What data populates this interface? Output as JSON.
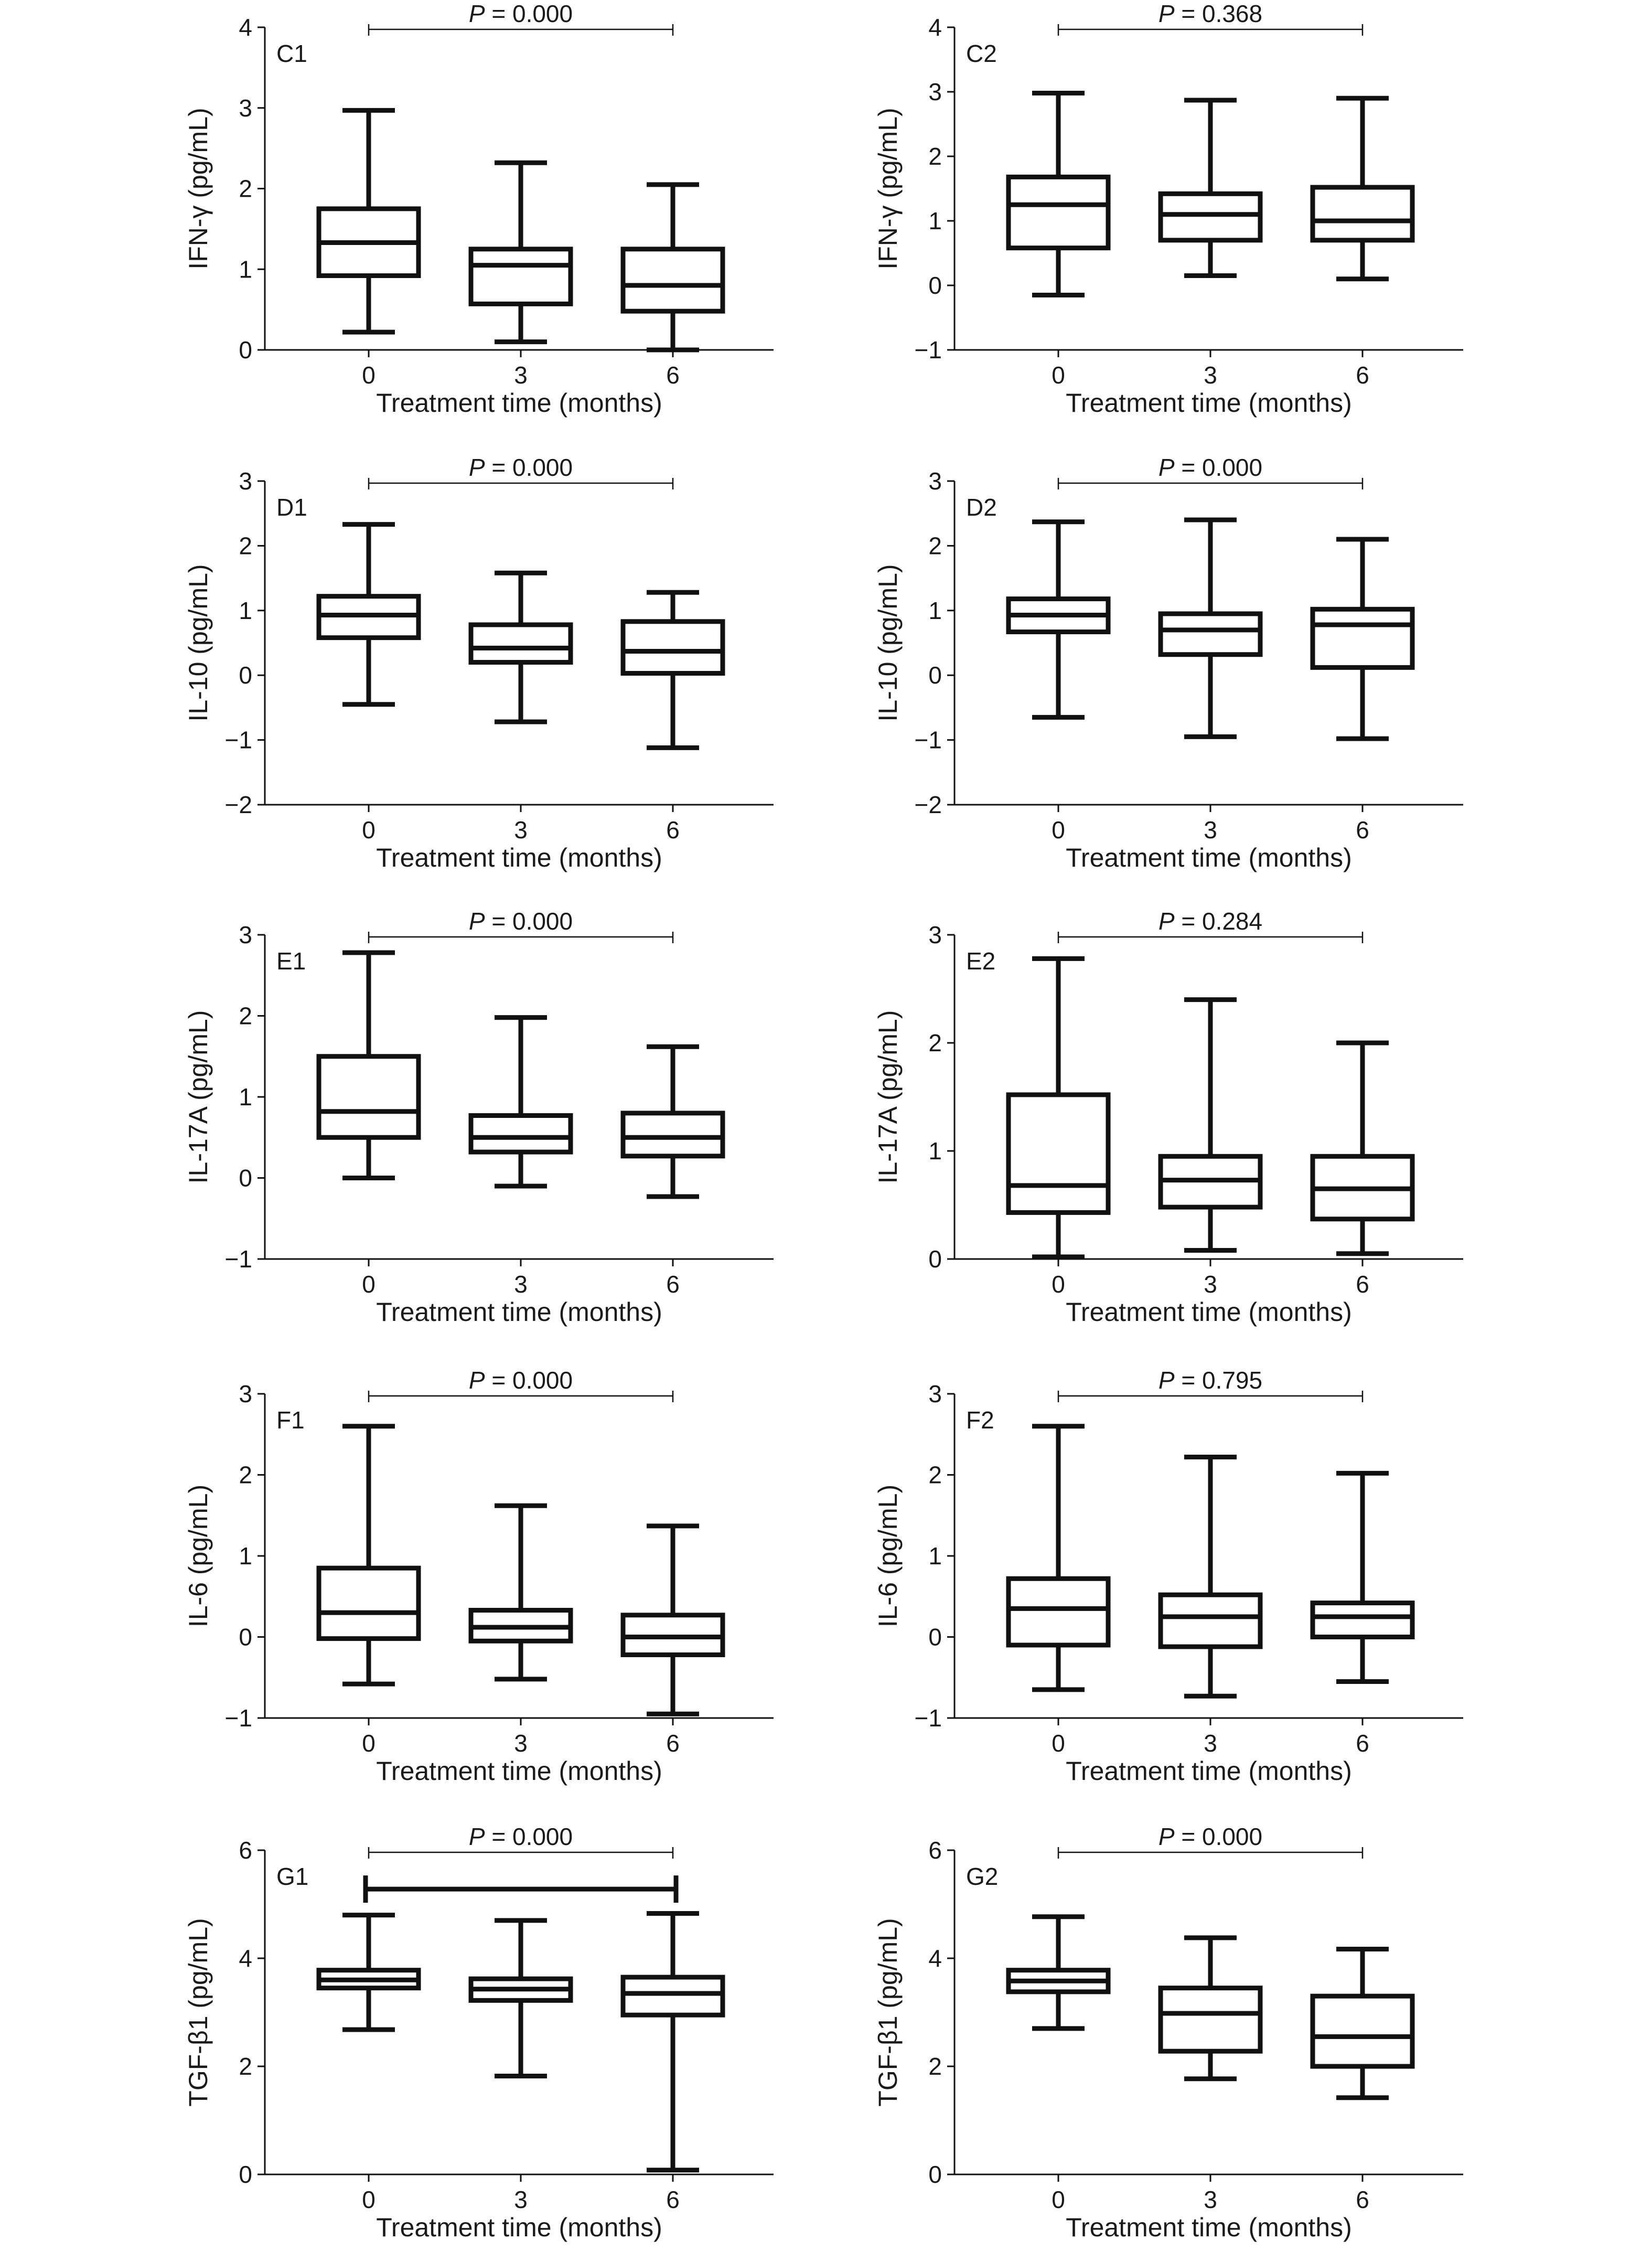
{
  "chart_data": [
    {
      "type": "box",
      "panel": "C1",
      "ylabel": "IFN-γ (pg/mL)",
      "xlabel": "Treatment time (months)",
      "categories": [
        "0",
        "3",
        "6"
      ],
      "ylim": [
        0,
        4
      ],
      "yticks": [
        0,
        1,
        2,
        3,
        4
      ],
      "p_label": "P",
      "p_value": "= 0.000",
      "boxes": [
        {
          "min": 0.22,
          "q1": 0.92,
          "median": 1.33,
          "q3": 1.75,
          "max": 2.97
        },
        {
          "min": 0.1,
          "q1": 0.57,
          "median": 1.05,
          "q3": 1.25,
          "max": 2.32
        },
        {
          "min": 0.0,
          "q1": 0.48,
          "median": 0.8,
          "q3": 1.25,
          "max": 2.05
        }
      ]
    },
    {
      "type": "box",
      "panel": "C2",
      "ylabel": "IFN-γ (pg/mL)",
      "xlabel": "Treatment time (months)",
      "categories": [
        "0",
        "3",
        "6"
      ],
      "ylim": [
        -1,
        4
      ],
      "yticks": [
        -1,
        0,
        1,
        2,
        3,
        4
      ],
      "p_label": "P",
      "p_value": "= 0.368",
      "boxes": [
        {
          "min": -0.15,
          "q1": 0.58,
          "median": 1.25,
          "q3": 1.68,
          "max": 2.98
        },
        {
          "min": 0.15,
          "q1": 0.7,
          "median": 1.1,
          "q3": 1.42,
          "max": 2.87
        },
        {
          "min": 0.1,
          "q1": 0.7,
          "median": 1.0,
          "q3": 1.52,
          "max": 2.9
        }
      ]
    },
    {
      "type": "box",
      "panel": "D1",
      "ylabel": "IL-10 (pg/mL)",
      "xlabel": "Treatment time (months)",
      "categories": [
        "0",
        "3",
        "6"
      ],
      "ylim": [
        -2,
        3
      ],
      "yticks": [
        -2,
        -1,
        0,
        1,
        2,
        3
      ],
      "p_label": "P",
      "p_value": "= 0.000",
      "boxes": [
        {
          "min": -0.45,
          "q1": 0.58,
          "median": 0.93,
          "q3": 1.22,
          "max": 2.33
        },
        {
          "min": -0.72,
          "q1": 0.2,
          "median": 0.42,
          "q3": 0.78,
          "max": 1.58
        },
        {
          "min": -1.12,
          "q1": 0.03,
          "median": 0.37,
          "q3": 0.83,
          "max": 1.28
        }
      ]
    },
    {
      "type": "box",
      "panel": "D2",
      "ylabel": "IL-10 (pg/mL)",
      "xlabel": "Treatment time (months)",
      "categories": [
        "0",
        "3",
        "6"
      ],
      "ylim": [
        -2,
        3
      ],
      "yticks": [
        -2,
        -1,
        0,
        1,
        2,
        3
      ],
      "p_label": "P",
      "p_value": "= 0.000",
      "boxes": [
        {
          "min": -0.65,
          "q1": 0.67,
          "median": 0.93,
          "q3": 1.18,
          "max": 2.37
        },
        {
          "min": -0.95,
          "q1": 0.32,
          "median": 0.7,
          "q3": 0.95,
          "max": 2.4
        },
        {
          "min": -0.98,
          "q1": 0.12,
          "median": 0.78,
          "q3": 1.02,
          "max": 2.1
        }
      ]
    },
    {
      "type": "box",
      "panel": "E1",
      "ylabel": "IL-17A (pg/mL)",
      "xlabel": "Treatment time (months)",
      "categories": [
        "0",
        "3",
        "6"
      ],
      "ylim": [
        -1,
        3
      ],
      "yticks": [
        -1,
        0,
        1,
        2,
        3
      ],
      "p_label": "P",
      "p_value": "= 0.000",
      "boxes": [
        {
          "min": 0.0,
          "q1": 0.5,
          "median": 0.82,
          "q3": 1.5,
          "max": 2.78
        },
        {
          "min": -0.1,
          "q1": 0.32,
          "median": 0.5,
          "q3": 0.77,
          "max": 1.98
        },
        {
          "min": -0.23,
          "q1": 0.27,
          "median": 0.5,
          "q3": 0.8,
          "max": 1.62
        }
      ]
    },
    {
      "type": "box",
      "panel": "E2",
      "ylabel": "IL-17A (pg/mL)",
      "xlabel": "Treatment time (months)",
      "categories": [
        "0",
        "3",
        "6"
      ],
      "ylim": [
        0,
        3
      ],
      "yticks": [
        0,
        1,
        2,
        3
      ],
      "p_label": "P",
      "p_value": "= 0.284",
      "boxes": [
        {
          "min": 0.02,
          "q1": 0.43,
          "median": 0.68,
          "q3": 1.52,
          "max": 2.78
        },
        {
          "min": 0.08,
          "q1": 0.48,
          "median": 0.73,
          "q3": 0.95,
          "max": 2.4
        },
        {
          "min": 0.05,
          "q1": 0.37,
          "median": 0.65,
          "q3": 0.95,
          "max": 2.0
        }
      ]
    },
    {
      "type": "box",
      "panel": "F1",
      "ylabel": "IL-6 (pg/mL)",
      "xlabel": "Treatment time (months)",
      "categories": [
        "0",
        "3",
        "6"
      ],
      "ylim": [
        -1,
        3
      ],
      "yticks": [
        -1,
        0,
        1,
        2,
        3
      ],
      "p_label": "P",
      "p_value": "= 0.000",
      "boxes": [
        {
          "min": -0.58,
          "q1": -0.02,
          "median": 0.3,
          "q3": 0.85,
          "max": 2.6
        },
        {
          "min": -0.52,
          "q1": -0.05,
          "median": 0.12,
          "q3": 0.33,
          "max": 1.62
        },
        {
          "min": -0.95,
          "q1": -0.22,
          "median": 0.0,
          "q3": 0.27,
          "max": 1.37
        }
      ]
    },
    {
      "type": "box",
      "panel": "F2",
      "ylabel": "IL-6 (pg/mL)",
      "xlabel": "Treatment time (months)",
      "categories": [
        "0",
        "3",
        "6"
      ],
      "ylim": [
        -1,
        3
      ],
      "yticks": [
        -1,
        0,
        1,
        2,
        3
      ],
      "p_label": "P",
      "p_value": "= 0.795",
      "boxes": [
        {
          "min": -0.65,
          "q1": -0.1,
          "median": 0.35,
          "q3": 0.72,
          "max": 2.6
        },
        {
          "min": -0.73,
          "q1": -0.12,
          "median": 0.25,
          "q3": 0.52,
          "max": 2.22
        },
        {
          "min": -0.55,
          "q1": 0.0,
          "median": 0.25,
          "q3": 0.42,
          "max": 2.02
        }
      ]
    },
    {
      "type": "box",
      "panel": "G1",
      "ylabel": "TGF-β1 (pg/mL)",
      "xlabel": "Treatment time (months)",
      "categories": [
        "0",
        "3",
        "6"
      ],
      "ylim": [
        0,
        6
      ],
      "yticks": [
        0,
        2,
        4,
        6
      ],
      "p_label": "P",
      "p_value": "= 0.000",
      "boxes": [
        {
          "min": 2.68,
          "q1": 3.45,
          "median": 3.6,
          "q3": 3.78,
          "max": 4.8
        },
        {
          "min": 1.82,
          "q1": 3.22,
          "median": 3.43,
          "q3": 3.62,
          "max": 4.7
        },
        {
          "min": 0.08,
          "q1": 2.95,
          "median": 3.35,
          "q3": 3.65,
          "max": 4.83
        }
      ]
    },
    {
      "type": "box",
      "panel": "G2",
      "ylabel": "TGF-β1 (pg/mL)",
      "xlabel": "Treatment time (months)",
      "categories": [
        "0",
        "3",
        "6"
      ],
      "ylim": [
        0,
        6
      ],
      "yticks": [
        0,
        2,
        4,
        6
      ],
      "p_label": "P",
      "p_value": "= 0.000",
      "boxes": [
        {
          "min": 2.7,
          "q1": 3.38,
          "median": 3.58,
          "q3": 3.78,
          "max": 4.77
        },
        {
          "min": 1.77,
          "q1": 2.28,
          "median": 2.98,
          "q3": 3.45,
          "max": 4.38
        },
        {
          "min": 1.42,
          "q1": 2.0,
          "median": 2.55,
          "q3": 3.3,
          "max": 4.17
        }
      ]
    }
  ]
}
